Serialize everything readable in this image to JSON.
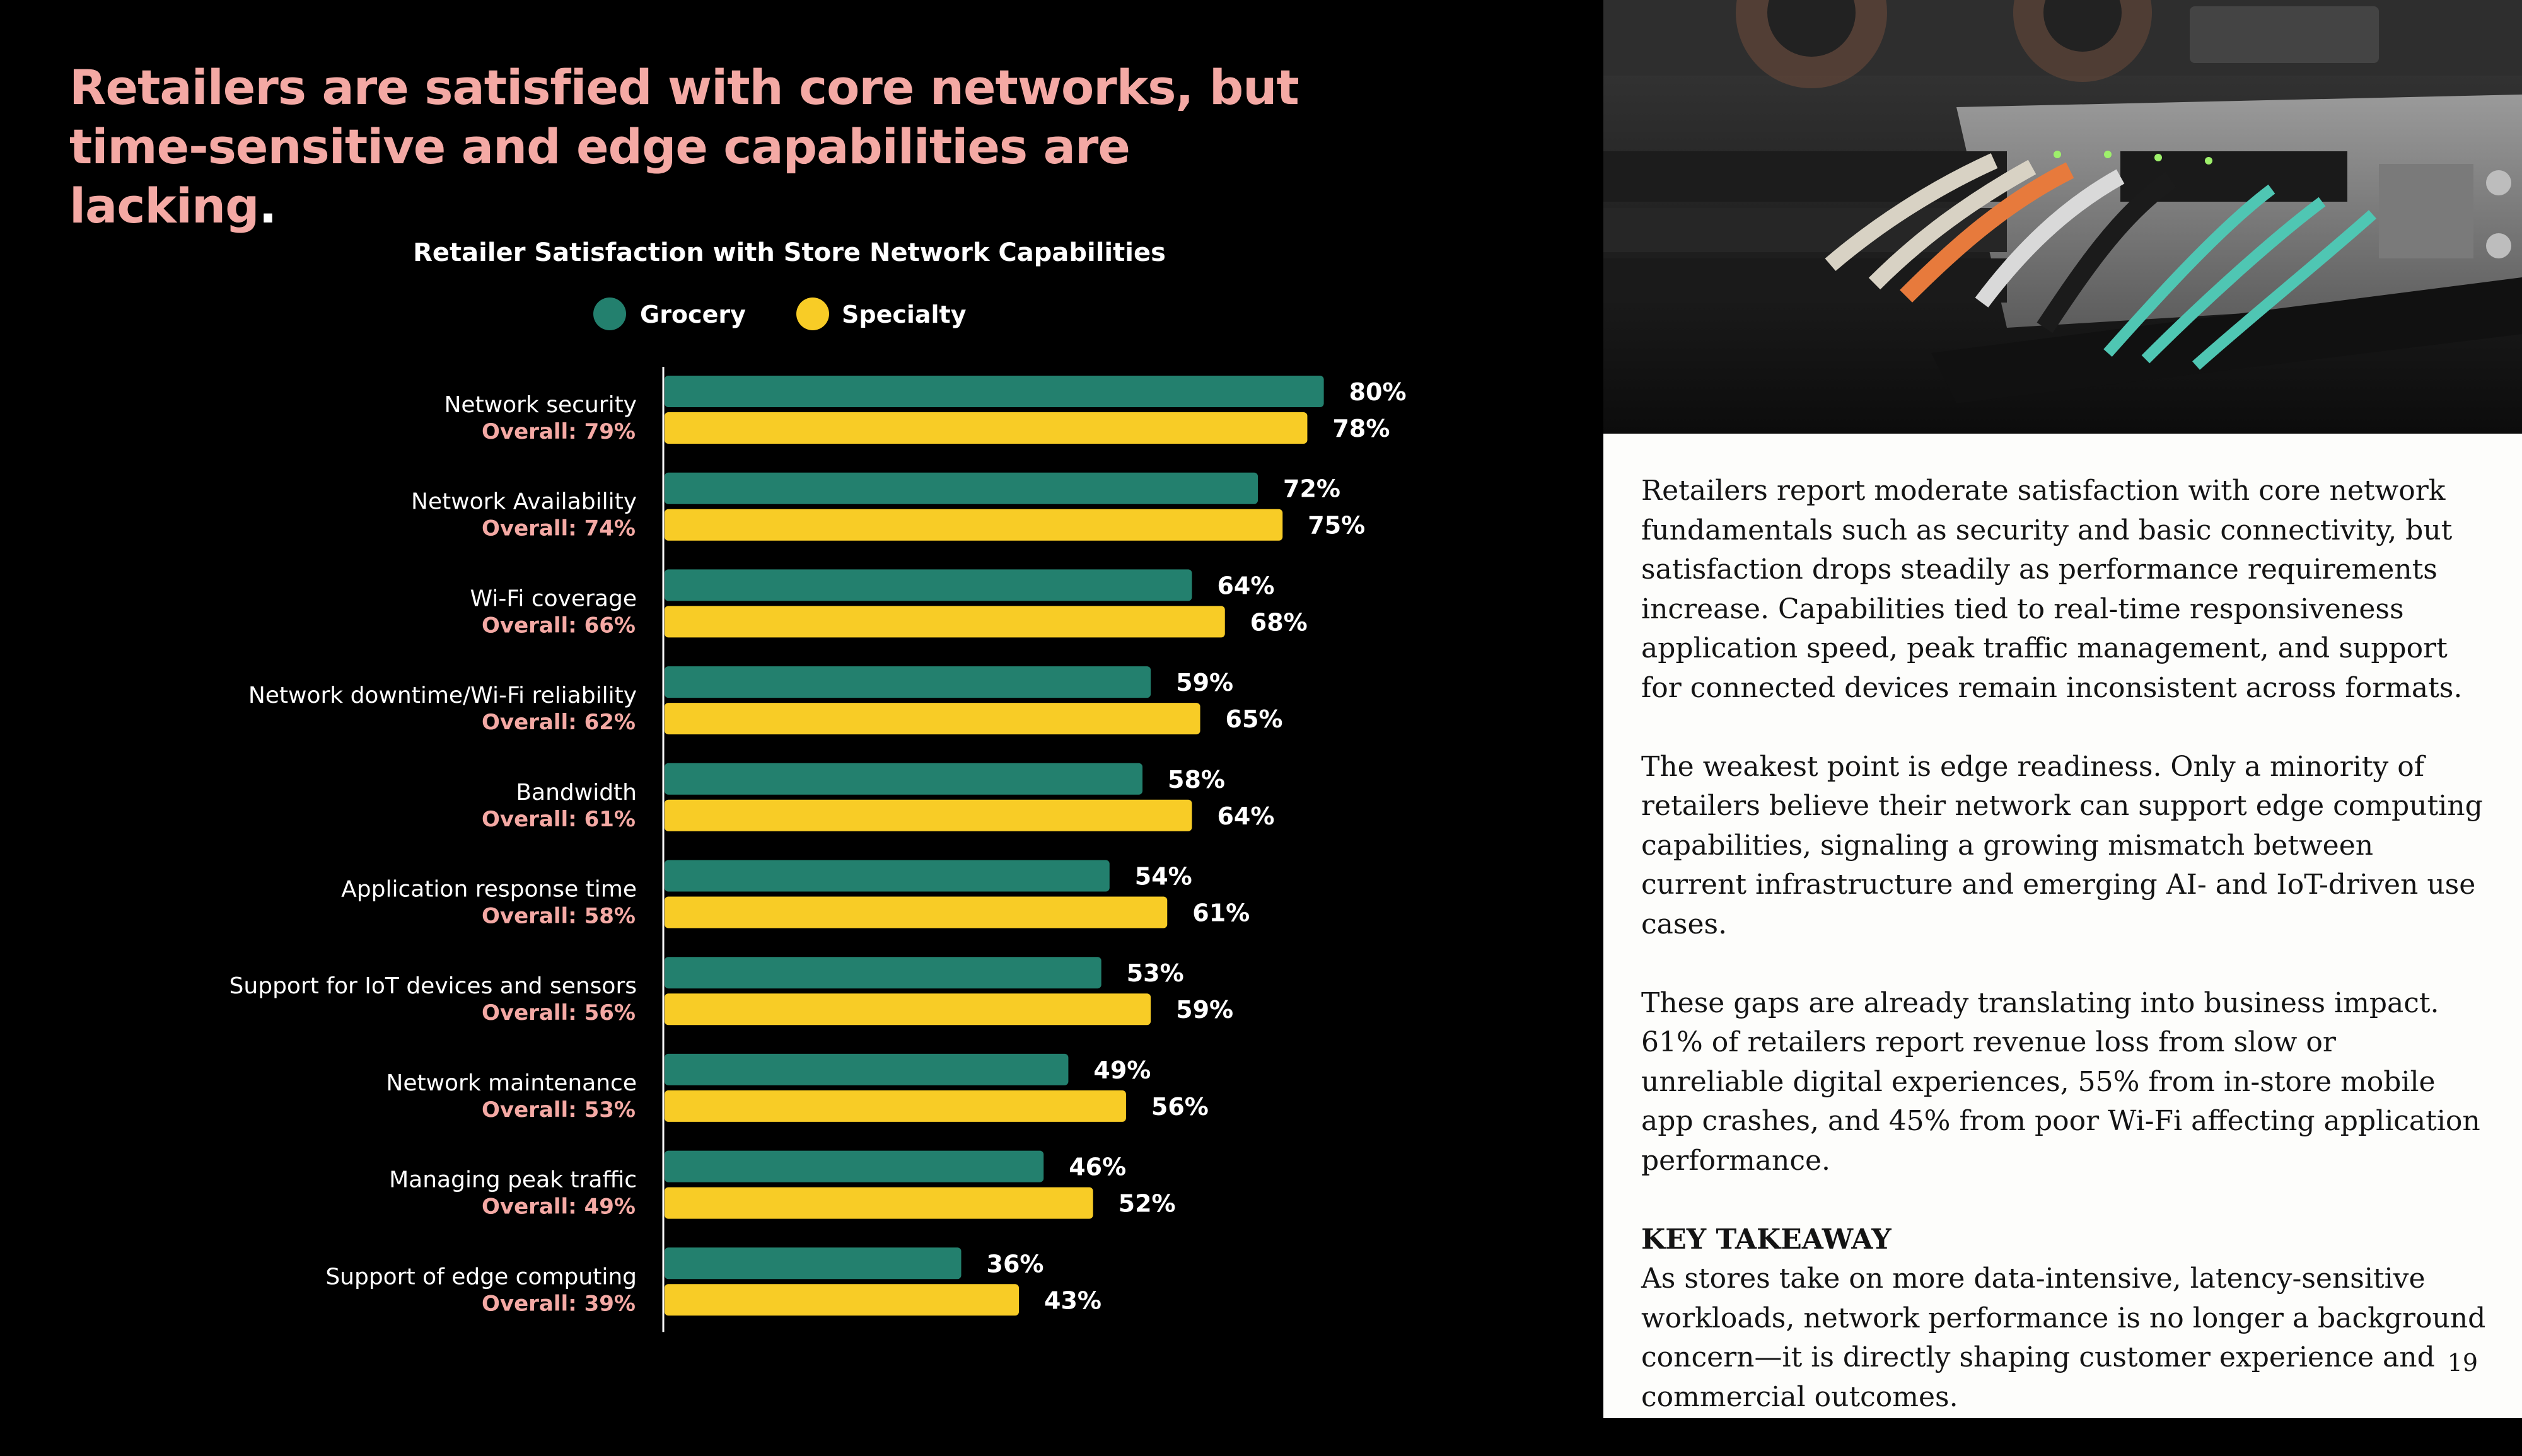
{
  "headline": {
    "main": "Retailers are satisfied with core networks, but time-sensitive and edge capabilities are lacking",
    "end": "."
  },
  "chart_data": {
    "type": "bar",
    "orientation": "horizontal",
    "title": "Retailer Satisfaction with Store Network Capabilities",
    "categories": [
      "Network security",
      "Network Availability",
      "Wi-Fi coverage",
      "Network downtime/Wi-Fi reliability",
      "Bandwidth",
      "Application response time",
      "Support for IoT devices and sensors",
      "Network maintenance",
      "Managing peak traffic",
      "Support of edge computing"
    ],
    "overall_labels": [
      "Overall: 79%",
      "Overall: 74%",
      "Overall: 66%",
      "Overall: 62%",
      "Overall: 61%",
      "Overall: 58%",
      "Overall: 56%",
      "Overall: 53%",
      "Overall: 49%",
      "Overall: 39%"
    ],
    "series": [
      {
        "name": "Grocery",
        "color": "#23806e",
        "values": [
          80,
          72,
          64,
          59,
          58,
          54,
          53,
          49,
          46,
          36
        ]
      },
      {
        "name": "Specialty",
        "color": "#f8cc26",
        "values": [
          78,
          75,
          68,
          65,
          64,
          61,
          59,
          56,
          52,
          43
        ]
      }
    ],
    "value_suffix": "%",
    "xlim": [
      0,
      100
    ],
    "legend": "top-center",
    "grid": false
  },
  "colors": {
    "accent_pink": "#f4a9a4",
    "background_left": "#000000",
    "background_right": "#fdfdfb"
  },
  "text": {
    "p1": "Retailers report moderate satisfaction with core network fundamentals such as security and basic connectivity, but satisfaction drops steadily as performance requirements increase. Capabilities tied to real-time responsiveness application speed, peak traffic management, and support for connected devices remain inconsistent across formats.",
    "p2": "The weakest point is edge readiness. Only a minority of retailers believe their network can support edge computing capabilities, signaling a growing mismatch between current infrastructure and emerging AI- and IoT-driven use cases.",
    "p3": "These gaps are already translating into business impact. 61% of retailers report revenue loss from slow or unreliable digital experiences, 55% from in-store mobile app crashes, and 45% from poor Wi-Fi affecting application performance.",
    "takeaway_heading": "KEY TAKEAWAY",
    "takeaway": "As stores take on more data-intensive, latency-sensitive workloads, network performance is no longer a background concern—it is directly shaping customer experience and commercial outcomes."
  },
  "page_number": "19"
}
